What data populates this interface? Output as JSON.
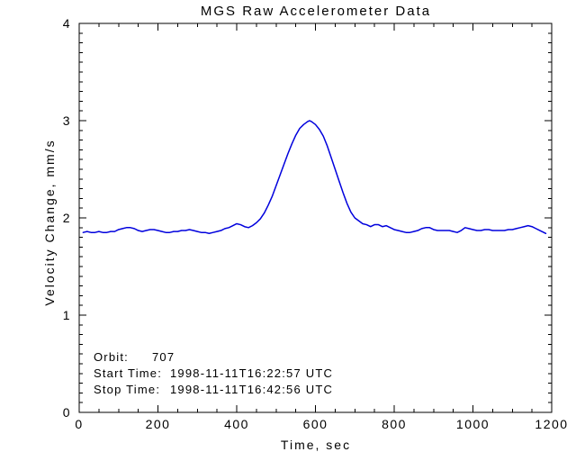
{
  "page": {
    "background": "#ffffff",
    "text_color": "#000000"
  },
  "chart_data": {
    "type": "line",
    "title": "MGS Raw Accelerometer Data",
    "xlabel": "Time, sec",
    "ylabel": "Velocity Change, mm/s",
    "xlim": [
      0,
      1200
    ],
    "ylim": [
      0,
      4
    ],
    "xticks": [
      0,
      200,
      400,
      600,
      800,
      1000,
      1200
    ],
    "yticks": [
      0,
      1,
      2,
      3,
      4
    ],
    "x_minor_step": 50,
    "y_minor_step": 0.1,
    "grid": false,
    "legend": "none",
    "line_color": "#0000dd",
    "axis_color": "#000000",
    "series": [
      {
        "name": "velocity-change",
        "x": [
          10,
          20,
          30,
          40,
          50,
          60,
          70,
          80,
          90,
          100,
          110,
          120,
          130,
          140,
          150,
          160,
          170,
          180,
          190,
          200,
          210,
          220,
          230,
          240,
          250,
          260,
          270,
          280,
          290,
          300,
          310,
          320,
          330,
          340,
          350,
          360,
          370,
          380,
          390,
          400,
          410,
          420,
          430,
          440,
          450,
          460,
          470,
          480,
          490,
          500,
          510,
          520,
          530,
          540,
          550,
          560,
          570,
          580,
          585,
          590,
          600,
          610,
          620,
          630,
          640,
          650,
          660,
          670,
          680,
          690,
          700,
          710,
          720,
          730,
          740,
          750,
          760,
          770,
          780,
          790,
          800,
          810,
          820,
          830,
          840,
          850,
          860,
          870,
          880,
          890,
          900,
          910,
          920,
          930,
          940,
          950,
          960,
          970,
          980,
          990,
          1000,
          1010,
          1020,
          1030,
          1040,
          1050,
          1060,
          1070,
          1080,
          1090,
          1100,
          1110,
          1120,
          1130,
          1140,
          1150,
          1160,
          1170,
          1180,
          1185
        ],
        "values": [
          1.85,
          1.86,
          1.85,
          1.85,
          1.86,
          1.85,
          1.85,
          1.86,
          1.86,
          1.88,
          1.89,
          1.9,
          1.9,
          1.89,
          1.87,
          1.86,
          1.87,
          1.88,
          1.88,
          1.87,
          1.86,
          1.85,
          1.85,
          1.86,
          1.86,
          1.87,
          1.87,
          1.88,
          1.87,
          1.86,
          1.85,
          1.85,
          1.84,
          1.85,
          1.86,
          1.87,
          1.89,
          1.9,
          1.92,
          1.94,
          1.93,
          1.91,
          1.9,
          1.92,
          1.95,
          1.99,
          2.05,
          2.13,
          2.22,
          2.33,
          2.44,
          2.55,
          2.66,
          2.76,
          2.85,
          2.92,
          2.96,
          2.99,
          3.0,
          2.99,
          2.96,
          2.91,
          2.84,
          2.74,
          2.62,
          2.5,
          2.38,
          2.26,
          2.15,
          2.06,
          2.0,
          1.97,
          1.94,
          1.93,
          1.91,
          1.93,
          1.93,
          1.91,
          1.92,
          1.9,
          1.88,
          1.87,
          1.86,
          1.85,
          1.85,
          1.86,
          1.87,
          1.89,
          1.9,
          1.9,
          1.88,
          1.87,
          1.87,
          1.87,
          1.87,
          1.86,
          1.85,
          1.87,
          1.9,
          1.89,
          1.88,
          1.87,
          1.87,
          1.88,
          1.88,
          1.87,
          1.87,
          1.87,
          1.87,
          1.88,
          1.88,
          1.89,
          1.9,
          1.91,
          1.92,
          1.91,
          1.89,
          1.87,
          1.85,
          1.84
        ]
      }
    ],
    "annotations": [
      {
        "label": "Orbit:",
        "value": "707"
      },
      {
        "label": "Start Time:",
        "value": "1998-11-11T16:22:57 UTC"
      },
      {
        "label": "Stop Time:",
        "value": "1998-11-11T16:42:56 UTC"
      }
    ]
  }
}
